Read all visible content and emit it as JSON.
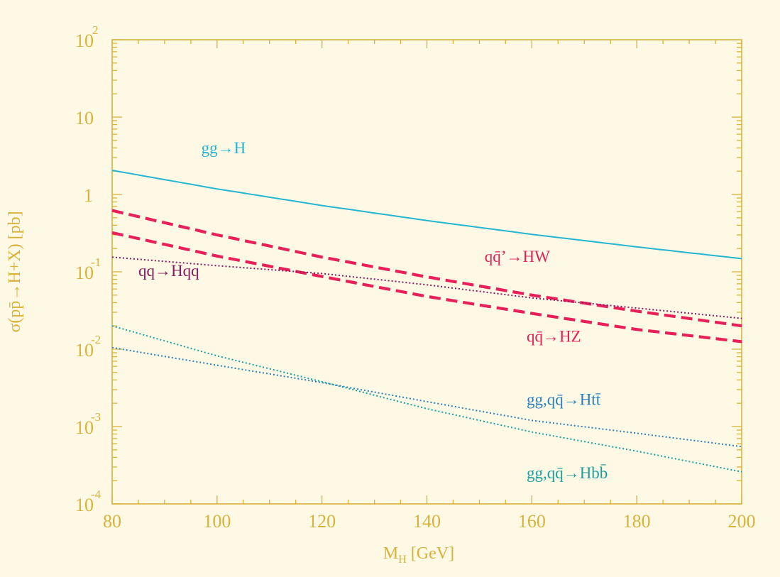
{
  "chart_data": {
    "type": "line",
    "xlabel": "M",
    "xlabel_sub": "H",
    "xlabel_unit": " [GeV]",
    "ylabel": "σ(pp̄→H+X) [pb]",
    "xlim": [
      80,
      200
    ],
    "ylim": [
      0.0001,
      100
    ],
    "y_scale": "log",
    "x_ticks": [
      "80",
      "100",
      "120",
      "140",
      "160",
      "180",
      "200"
    ],
    "y_ticks": [
      {
        "base": "10",
        "exp": " 2",
        "value": 100
      },
      {
        "base": "10",
        "exp": "",
        "value": 10
      },
      {
        "base": "1",
        "exp": "",
        "value": 1
      },
      {
        "base": "10",
        "exp": "-1",
        "value": 0.1
      },
      {
        "base": "10",
        "exp": "-2",
        "value": 0.01
      },
      {
        "base": "10",
        "exp": "-3",
        "value": 0.001
      },
      {
        "base": "10",
        "exp": "-4",
        "value": 0.0001
      }
    ],
    "colors": {
      "axis": "#d9b23a",
      "background": "#fdf9e4",
      "ggH": "#25b5d2",
      "vh": "#e8205a",
      "vbf": "#8a1a60",
      "htt": "#2a7ec2",
      "hbb": "#1aa0a2"
    },
    "series": [
      {
        "name": "gg→H",
        "style": "solid",
        "color_key": "ggH",
        "x": [
          80,
          100,
          120,
          140,
          160,
          180,
          200
        ],
        "y": [
          2.05,
          1.18,
          0.72,
          0.46,
          0.305,
          0.21,
          0.148
        ]
      },
      {
        "name": "qq̄’→HW",
        "style": "dashed",
        "color_key": "vh",
        "x": [
          80,
          100,
          120,
          140,
          160,
          180,
          200
        ],
        "y": [
          0.62,
          0.3,
          0.155,
          0.086,
          0.05,
          0.031,
          0.02
        ]
      },
      {
        "name": "qq̄→HZ",
        "style": "dashed",
        "color_key": "vh",
        "x": [
          80,
          100,
          120,
          140,
          160,
          180,
          200
        ],
        "y": [
          0.32,
          0.16,
          0.087,
          0.048,
          0.029,
          0.018,
          0.0125
        ]
      },
      {
        "name": "qq→Hqq",
        "style": "dotted",
        "color_key": "vbf",
        "x": [
          80,
          100,
          120,
          140,
          160,
          180,
          200
        ],
        "y": [
          0.155,
          0.12,
          0.095,
          0.068,
          0.046,
          0.034,
          0.025
        ]
      },
      {
        "name": "gg,qq̄→Htt̄",
        "style": "dotted",
        "color_key": "htt",
        "x": [
          80,
          100,
          120,
          140,
          160,
          180,
          200
        ],
        "y": [
          0.0105,
          0.0062,
          0.0037,
          0.0021,
          0.0012,
          0.00082,
          0.00055
        ]
      },
      {
        "name": "gg,qq̄→Hbb̄",
        "style": "dotted",
        "color_key": "hbb",
        "x": [
          80,
          100,
          120,
          140,
          160,
          180,
          200
        ],
        "y": [
          0.02,
          0.0082,
          0.0038,
          0.0017,
          0.00085,
          0.00048,
          0.00026
        ]
      }
    ],
    "labels": [
      {
        "text": "gg→H",
        "x": 97,
        "y": 3.4,
        "color_key": "ggH"
      },
      {
        "text": "qq̄’→HW",
        "x": 151,
        "y": 0.135,
        "color_key": "vh"
      },
      {
        "text": "qq→Hqq",
        "x": 85,
        "y": 0.088,
        "color_key": "vbf"
      },
      {
        "text": "qq̄→HZ",
        "x": 159,
        "y": 0.0125,
        "color_key": "vh"
      },
      {
        "text": "gg,qq̄→Htt̄",
        "x": 159,
        "y": 0.0019,
        "color_key": "htt"
      },
      {
        "text": "gg,qq̄→Hbb̄",
        "x": 159,
        "y": 0.000215,
        "color_key": "hbb"
      }
    ]
  }
}
